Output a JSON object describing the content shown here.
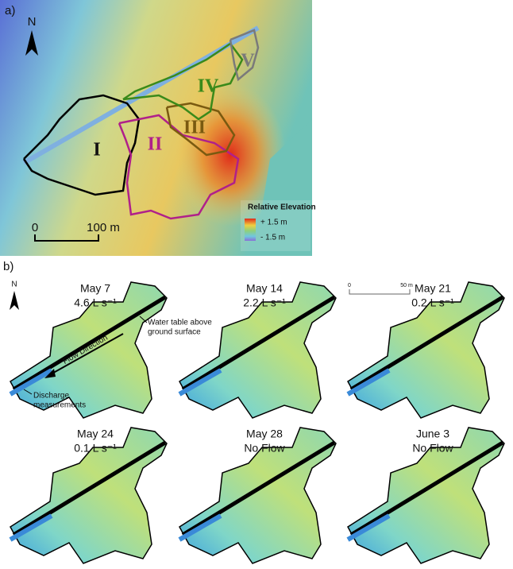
{
  "panel_a": {
    "label": "a)",
    "north": "N",
    "catchments": [
      "I",
      "II",
      "III",
      "IV",
      "V"
    ],
    "legend": {
      "title": "Relative Elevation",
      "max": "+ 1.5 m",
      "min": "- 1.5 m"
    },
    "scale_bar": {
      "start": "0",
      "end": "100 m"
    }
  },
  "panel_b": {
    "label": "b)",
    "north": "N",
    "scale_bar": {
      "start": "0",
      "end": "50 m"
    },
    "maps": [
      {
        "date": "May 7",
        "flow": "4.6 L s⁻¹"
      },
      {
        "date": "May 14",
        "flow": "2.2 L s⁻¹"
      },
      {
        "date": "May 21",
        "flow": "0.2 L s⁻¹"
      },
      {
        "date": "May 24",
        "flow": "0.1 L s⁻¹"
      },
      {
        "date": "May 28",
        "flow": "No Flow"
      },
      {
        "date": "June 3",
        "flow": "No Flow"
      }
    ],
    "annotations": {
      "water_table": [
        "Water table above",
        "ground surface"
      ],
      "flow_direction": "Flow Direction",
      "discharge": [
        "Discharge",
        "measurements"
      ]
    }
  }
}
